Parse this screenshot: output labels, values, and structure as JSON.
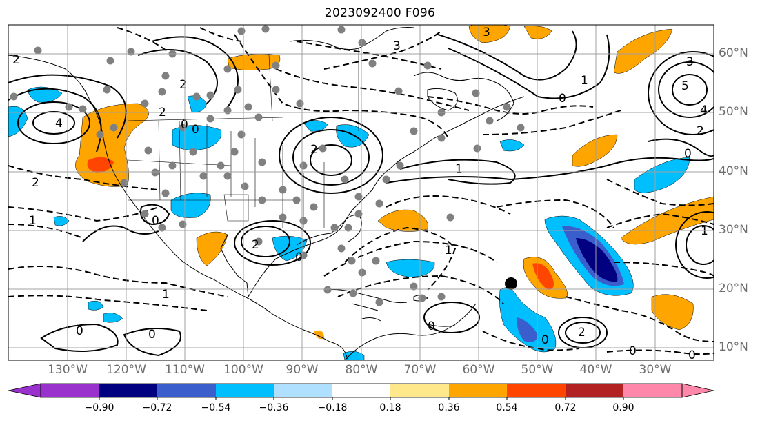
{
  "title": "2023092400 F096",
  "latitude_labels": [
    "60°N",
    "50°N",
    "40°N",
    "30°N",
    "20°N",
    "10°N"
  ],
  "longitude_labels": [
    "130°W",
    "120°W",
    "110°W",
    "100°W",
    "90°W",
    "80°W",
    "70°W",
    "60°W",
    "50°W",
    "40°W",
    "30°W"
  ],
  "contour_labels": [
    "0",
    "1",
    "2",
    "3",
    "4",
    "5"
  ],
  "colorbar": {
    "tick_labels": [
      "−0.90",
      "−0.72",
      "−0.54",
      "−0.36",
      "−0.18",
      "0.18",
      "0.36",
      "0.54",
      "0.72",
      "0.90"
    ],
    "colors": [
      "#9932cc",
      "#000080",
      "#3a5fcd",
      "#00bfff",
      "#b0e0ff",
      "#ffffff",
      "#ffe88c",
      "#ffa500",
      "#ff4500",
      "#b22222",
      "#ff88aa"
    ],
    "extend": "both"
  },
  "colors": {
    "land_outline": "#000000",
    "grid": "#a0a0a0",
    "marker": "#808080",
    "storm_marker": "#000000"
  }
}
